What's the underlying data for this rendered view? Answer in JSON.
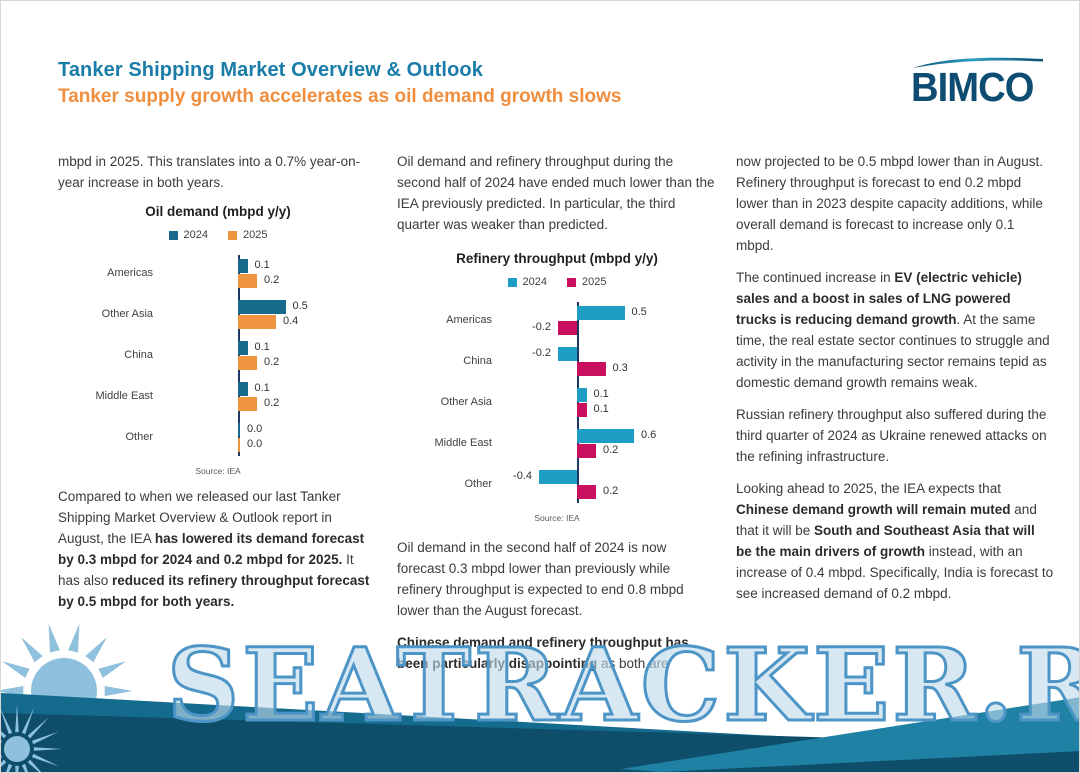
{
  "page": {
    "watermark": "SEATRACKER.RU"
  },
  "header": {
    "title": "Tanker Shipping Market Overview & Outlook",
    "subtitle": "Tanker supply growth accelerates as oil demand growth slows",
    "logo": "BIMCO"
  },
  "colors": {
    "title_teal": "#1A7CA8",
    "subtitle_orange": "#EF8E3E",
    "logo_navy": "#0E4D71",
    "oil_2024": "#176A8C",
    "oil_2025": "#F0953F",
    "refinery_2024": "#1E9EC4",
    "refinery_2025": "#C8105E",
    "wave_teal": "#156B8D",
    "wave_navy": "#0E4E6B",
    "wave_light": "#1F81A3",
    "sun_blue": "#8FC1DE"
  },
  "columns": {
    "col1": {
      "p1": [
        {
          "t": "mbpd in 2025. This translates into a 0.7% year-on-year increase in both years.",
          "b": false
        }
      ],
      "p2": [
        {
          "t": "Compared to when we released our last Tanker Shipping Market Overview & Outlook report in August, the IEA ",
          "b": false
        },
        {
          "t": "has lowered its demand forecast by 0.3 mbpd for 2024 and 0.2 mbpd for 2025.",
          "b": true
        },
        {
          "t": " It has also ",
          "b": false
        },
        {
          "t": "reduced its refinery throughput forecast by 0.5 mbpd for both years.",
          "b": true
        }
      ]
    },
    "col2": {
      "p1": [
        {
          "t": "Oil demand and refinery throughput during the second half of 2024 have ended much lower than the IEA previously predicted. In particular, the third quarter was weaker than predicted.",
          "b": false
        }
      ],
      "p2": [
        {
          "t": "Oil demand in the second half of 2024 is now forecast 0.3 mbpd lower than previously while refinery throughput is expected to end 0.8 mbpd lower than the August forecast.",
          "b": false
        }
      ],
      "p3": [
        {
          "t": "Chinese demand and refinery throughput has been particularly disappointing",
          "b": true
        },
        {
          "t": " as both are",
          "b": false
        }
      ]
    },
    "col3": {
      "p1": [
        {
          "t": "now projected to be 0.5 mbpd lower than in August. Refinery throughput is forecast to end 0.2 mbpd lower than in 2023 despite capacity additions, while overall demand is forecast to increase only 0.1 mbpd.",
          "b": false
        }
      ],
      "p2": [
        {
          "t": "The continued increase in ",
          "b": false
        },
        {
          "t": "EV (electric vehicle) sales and a boost in sales of LNG powered trucks is reducing demand growth",
          "b": true
        },
        {
          "t": ". At the same time, the real estate sector continues to struggle and activity in the manufacturing sector remains tepid as domestic demand growth remains weak.",
          "b": false
        }
      ],
      "p3": [
        {
          "t": "Russian refinery throughput also suffered during the third quarter of 2024 as Ukraine renewed attacks on the refining infrastructure.",
          "b": false
        }
      ],
      "p4": [
        {
          "t": "Looking ahead to 2025, the IEA expects that ",
          "b": false
        },
        {
          "t": "Chinese demand growth will remain muted",
          "b": true
        },
        {
          "t": " and that it will be ",
          "b": false
        },
        {
          "t": "South and Southeast Asia that will be the main drivers of growth",
          "b": true
        },
        {
          "t": " instead, with an increase of 0.4 mbpd. Specifically, India is forecast to see increased demand of 0.2 mbpd.",
          "b": false
        }
      ]
    }
  },
  "chart_data": [
    {
      "type": "bar",
      "orientation": "horizontal",
      "title": "Oil demand (mbpd y/y)",
      "source": "Source: IEA",
      "grid": false,
      "legend_position": "top",
      "value_labels": true,
      "categories": [
        "Americas",
        "Other Asia",
        "China",
        "Middle East",
        "Other"
      ],
      "series": [
        {
          "name": "2024",
          "color": "#176A8C",
          "values": [
            0.1,
            0.5,
            0.1,
            0.1,
            0.0
          ]
        },
        {
          "name": "2025",
          "color": "#F0953F",
          "values": [
            0.2,
            0.4,
            0.2,
            0.2,
            0.0
          ]
        }
      ]
    },
    {
      "type": "bar",
      "orientation": "horizontal",
      "title": "Refinery throughput (mbpd y/y)",
      "source": "Source: IEA",
      "grid": false,
      "legend_position": "top",
      "value_labels": true,
      "categories": [
        "Americas",
        "China",
        "Other Asia",
        "Middle East",
        "Other"
      ],
      "series": [
        {
          "name": "2024",
          "color": "#1E9EC4",
          "values": [
            0.5,
            -0.2,
            0.1,
            0.6,
            -0.4
          ]
        },
        {
          "name": "2025",
          "color": "#C8105E",
          "values": [
            -0.2,
            0.3,
            0.1,
            0.2,
            0.2
          ]
        }
      ]
    }
  ]
}
